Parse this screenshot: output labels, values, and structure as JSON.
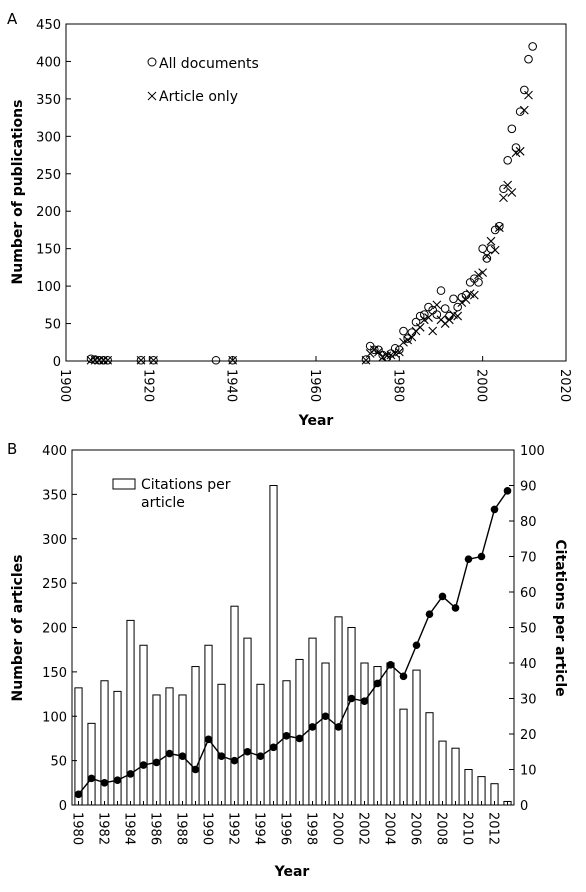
{
  "chart_data": [
    {
      "type": "scatter",
      "panel_label": "A",
      "xlabel": "Year",
      "ylabel": "Number of publications",
      "xlim": [
        1900,
        2020
      ],
      "ylim": [
        0,
        450
      ],
      "xticks": [
        1900,
        1920,
        1940,
        1960,
        1980,
        2000,
        2020
      ],
      "yticks": [
        0,
        50,
        100,
        150,
        200,
        250,
        300,
        350,
        400,
        450
      ],
      "grid": false,
      "legend_position": "top-left",
      "series": [
        {
          "name": "All documents",
          "marker": "circle",
          "points": [
            [
              1906,
              3
            ],
            [
              1907,
              2
            ],
            [
              1908,
              1
            ],
            [
              1909,
              1
            ],
            [
              1910,
              1
            ],
            [
              1918,
              1
            ],
            [
              1921,
              1
            ],
            [
              1936,
              1
            ],
            [
              1940,
              1
            ],
            [
              1972,
              2
            ],
            [
              1973,
              20
            ],
            [
              1974,
              15
            ],
            [
              1975,
              15
            ],
            [
              1976,
              8
            ],
            [
              1977,
              5
            ],
            [
              1978,
              10
            ],
            [
              1979,
              17
            ],
            [
              1980,
              15
            ],
            [
              1981,
              40
            ],
            [
              1982,
              30
            ],
            [
              1983,
              38
            ],
            [
              1984,
              52
            ],
            [
              1985,
              60
            ],
            [
              1986,
              62
            ],
            [
              1987,
              72
            ],
            [
              1988,
              68
            ],
            [
              1989,
              62
            ],
            [
              1990,
              94
            ],
            [
              1991,
              70
            ],
            [
              1992,
              60
            ],
            [
              1993,
              83
            ],
            [
              1994,
              72
            ],
            [
              1995,
              85
            ],
            [
              1996,
              88
            ],
            [
              1997,
              105
            ],
            [
              1998,
              110
            ],
            [
              1999,
              105
            ],
            [
              2000,
              150
            ],
            [
              2001,
              137
            ],
            [
              2002,
              150
            ],
            [
              2003,
              175
            ],
            [
              2004,
              180
            ],
            [
              2005,
              230
            ],
            [
              2006,
              268
            ],
            [
              2007,
              310
            ],
            [
              2008,
              285
            ],
            [
              2009,
              333
            ],
            [
              2010,
              362
            ],
            [
              2011,
              403
            ],
            [
              2012,
              420
            ]
          ]
        },
        {
          "name": "Article only",
          "marker": "x",
          "points": [
            [
              1906,
              1
            ],
            [
              1907,
              1
            ],
            [
              1908,
              1
            ],
            [
              1909,
              1
            ],
            [
              1910,
              1
            ],
            [
              1918,
              1
            ],
            [
              1921,
              1
            ],
            [
              1940,
              1
            ],
            [
              1972,
              1
            ],
            [
              1973,
              10
            ],
            [
              1974,
              15
            ],
            [
              1975,
              12
            ],
            [
              1976,
              5
            ],
            [
              1977,
              7
            ],
            [
              1978,
              8
            ],
            [
              1979,
              10
            ],
            [
              1980,
              12
            ],
            [
              1981,
              25
            ],
            [
              1982,
              28
            ],
            [
              1983,
              32
            ],
            [
              1984,
              40
            ],
            [
              1985,
              45
            ],
            [
              1986,
              55
            ],
            [
              1987,
              58
            ],
            [
              1988,
              40
            ],
            [
              1989,
              75
            ],
            [
              1990,
              55
            ],
            [
              1991,
              50
            ],
            [
              1992,
              55
            ],
            [
              1993,
              62
            ],
            [
              1994,
              60
            ],
            [
              1995,
              78
            ],
            [
              1996,
              82
            ],
            [
              1997,
              90
            ],
            [
              1998,
              88
            ],
            [
              1999,
              115
            ],
            [
              2000,
              118
            ],
            [
              2001,
              140
            ],
            [
              2002,
              160
            ],
            [
              2003,
              148
            ],
            [
              2004,
              178
            ],
            [
              2005,
              218
            ],
            [
              2006,
              235
            ],
            [
              2007,
              225
            ],
            [
              2008,
              278
            ],
            [
              2009,
              280
            ],
            [
              2010,
              335
            ],
            [
              2011,
              355
            ]
          ]
        }
      ]
    },
    {
      "type": "bar",
      "panel_label": "B",
      "xlabel": "Year",
      "ylabel": "Number of articles",
      "ylabel_right": "Citations per article",
      "ylim": [
        0,
        400
      ],
      "ylim_right": [
        0,
        100
      ],
      "yticks": [
        0,
        50,
        100,
        150,
        200,
        250,
        300,
        350,
        400
      ],
      "yticks_right": [
        0,
        10,
        20,
        30,
        40,
        50,
        60,
        70,
        80,
        90,
        100
      ],
      "grid": false,
      "legend_position": "top-left",
      "categories": [
        1980,
        1981,
        1982,
        1983,
        1984,
        1985,
        1986,
        1987,
        1988,
        1989,
        1990,
        1991,
        1992,
        1993,
        1994,
        1995,
        1996,
        1997,
        1998,
        1999,
        2000,
        2001,
        2002,
        2003,
        2004,
        2005,
        2006,
        2007,
        2008,
        2009,
        2010,
        2011,
        2012,
        2013
      ],
      "xtick_labels": [
        "1980",
        "1982",
        "1984",
        "1986",
        "1988",
        "1990",
        "1992",
        "1994",
        "1996",
        "1998",
        "2000",
        "2002",
        "2004",
        "2006",
        "2008",
        "2010",
        "2012"
      ],
      "series": [
        {
          "name": "Citations per article",
          "kind": "bar",
          "axis": "right",
          "values": [
            33,
            23,
            35,
            32,
            52,
            45,
            31,
            33,
            31,
            39,
            45,
            34,
            56,
            47,
            34,
            90,
            35,
            41,
            47,
            40,
            53,
            50,
            40,
            39,
            40,
            27,
            38,
            26,
            18,
            16,
            10,
            8,
            6,
            1
          ]
        },
        {
          "name": "",
          "kind": "line",
          "axis": "left",
          "values": [
            12,
            30,
            25,
            28,
            35,
            45,
            48,
            58,
            55,
            40,
            74,
            55,
            50,
            60,
            55,
            65,
            78,
            75,
            88,
            100,
            88,
            120,
            117,
            137,
            158,
            145,
            180,
            215,
            235,
            222,
            277,
            280,
            333,
            354
          ]
        }
      ]
    }
  ]
}
